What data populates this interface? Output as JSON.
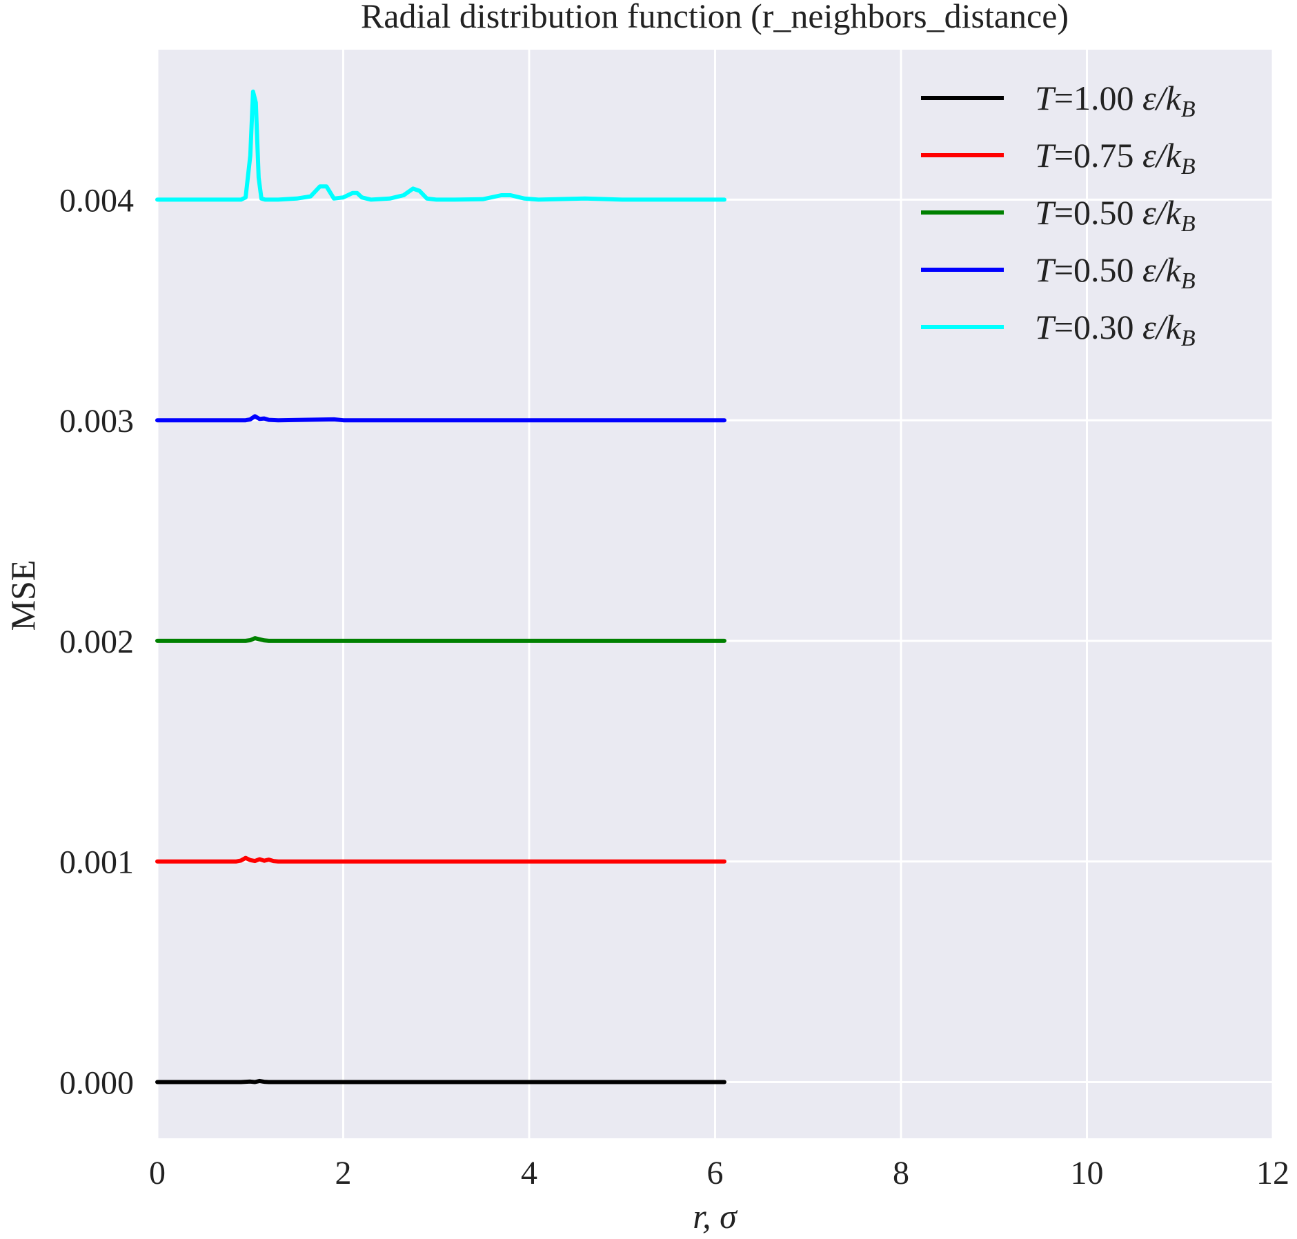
{
  "chart_data": {
    "type": "line",
    "title": "Radial distribution function (r_neighbors_distance)",
    "xlabel": "r, σ",
    "ylabel": "MSE",
    "xlim": [
      0,
      12
    ],
    "ylim": [
      -0.000255,
      0.00468
    ],
    "xticks": [
      0,
      2,
      4,
      6,
      8,
      10,
      12
    ],
    "yticks": [
      0.0,
      0.001,
      0.002,
      0.003,
      0.004
    ],
    "ytick_labels": [
      "0.000",
      "0.001",
      "0.002",
      "0.003",
      "0.004"
    ],
    "grid": true,
    "background": "#eaeaf2",
    "legend_position": "upper-right",
    "series": [
      {
        "name": "T = 1.00 ε/k_B",
        "legend": {
          "prefix": "T",
          "eq": "=",
          "value": "1.00",
          "eps": "ε/k",
          "sub": "B"
        },
        "color": "#000000",
        "x": [
          0,
          0.9,
          1.0,
          1.05,
          1.1,
          1.15,
          1.2,
          2.0,
          3.0,
          4.0,
          5.0,
          6.1
        ],
        "y": [
          0,
          0,
          2e-06,
          0,
          5e-06,
          1e-06,
          0,
          0,
          0,
          0,
          0,
          0
        ]
      },
      {
        "name": "T = 0.75 ε/k_B",
        "legend": {
          "prefix": "T",
          "eq": "=",
          "value": "0.75",
          "eps": "ε/k",
          "sub": "B"
        },
        "color": "#ff0000",
        "x": [
          0,
          0.85,
          0.9,
          0.95,
          1.0,
          1.05,
          1.1,
          1.15,
          1.2,
          1.25,
          1.3,
          2.0,
          3.0,
          4.0,
          5.0,
          6.1
        ],
        "y": [
          0.001,
          0.001,
          0.001004,
          0.001016,
          0.001006,
          0.001002,
          0.00101,
          0.001003,
          0.001008,
          0.001002,
          0.001,
          0.001,
          0.001,
          0.001,
          0.001,
          0.001
        ]
      },
      {
        "name": "T = 0.50 ε/k_B",
        "legend": {
          "prefix": "T",
          "eq": "=",
          "value": "0.50",
          "eps": "ε/k",
          "sub": "B"
        },
        "color": "#008000",
        "x": [
          0,
          0.95,
          1.0,
          1.05,
          1.1,
          1.15,
          1.2,
          1.3,
          2.0,
          3.0,
          4.0,
          5.0,
          6.1
        ],
        "y": [
          0.002,
          0.002,
          0.002003,
          0.002012,
          0.002007,
          0.002002,
          0.002,
          0.002,
          0.002,
          0.002,
          0.002,
          0.002,
          0.002
        ]
      },
      {
        "name": "T = 0.50 ε/k_B",
        "legend": {
          "prefix": "T",
          "eq": "=",
          "value": "0.50",
          "eps": "ε/k",
          "sub": "B"
        },
        "color": "#0000ff",
        "x": [
          0,
          0.95,
          1.0,
          1.05,
          1.1,
          1.15,
          1.2,
          1.3,
          1.9,
          2.0,
          3.0,
          4.0,
          5.0,
          6.1
        ],
        "y": [
          0.003,
          0.003,
          0.003004,
          0.003018,
          0.003006,
          0.003008,
          0.003002,
          0.003,
          0.003004,
          0.003,
          0.003,
          0.003,
          0.003,
          0.003
        ]
      },
      {
        "name": "T = 0.30 ε/k_B",
        "legend": {
          "prefix": "T",
          "eq": "=",
          "value": "0.30",
          "eps": "ε/k",
          "sub": "B"
        },
        "color": "#00ffff",
        "x": [
          0,
          0.9,
          0.95,
          1.0,
          1.03,
          1.06,
          1.09,
          1.12,
          1.16,
          1.22,
          1.3,
          1.5,
          1.65,
          1.75,
          1.82,
          1.9,
          2.0,
          2.1,
          2.15,
          2.2,
          2.3,
          2.5,
          2.65,
          2.75,
          2.82,
          2.9,
          3.0,
          3.2,
          3.5,
          3.7,
          3.8,
          3.95,
          4.1,
          4.6,
          5.0,
          5.5,
          6.1
        ],
        "y": [
          0.004,
          0.004,
          0.00401,
          0.0042,
          0.00449,
          0.00444,
          0.0041,
          0.004005,
          0.004,
          0.004,
          0.004,
          0.004005,
          0.004015,
          0.00406,
          0.00406,
          0.004005,
          0.00401,
          0.00403,
          0.00403,
          0.00401,
          0.004,
          0.004005,
          0.00402,
          0.00405,
          0.00404,
          0.004005,
          0.004,
          0.004,
          0.004002,
          0.00402,
          0.00402,
          0.004005,
          0.004,
          0.004005,
          0.004,
          0.004,
          0.004
        ]
      }
    ]
  }
}
